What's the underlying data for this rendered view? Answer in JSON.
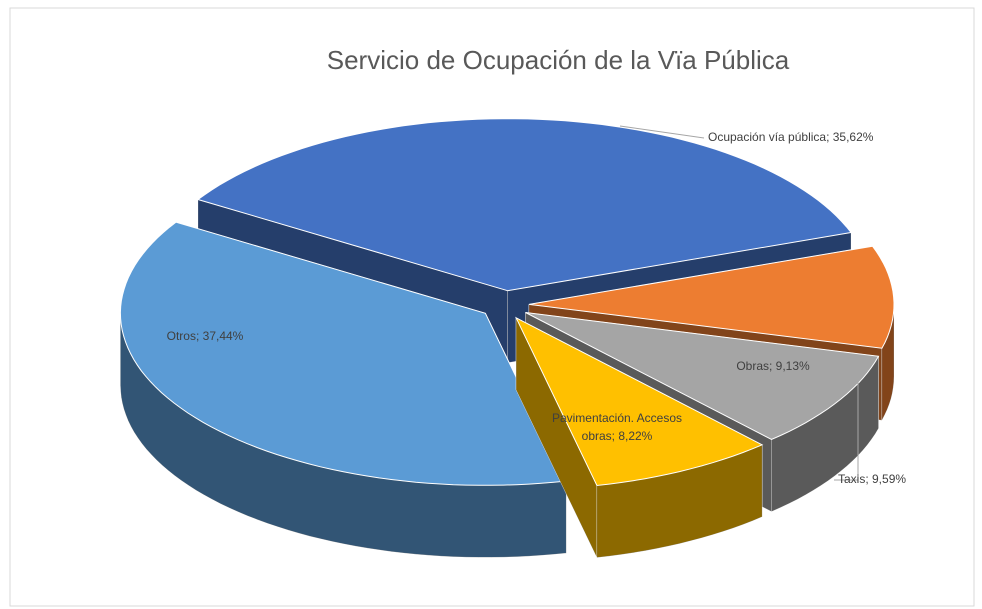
{
  "chart_data": {
    "type": "pie3d",
    "title": "Servicio de Ocupación de la Vïa Pública",
    "values": [
      35.62,
      9.59,
      9.13,
      8.22,
      37.44
    ],
    "value_labels": [
      "Ocupación vía pública; 35,62%",
      "Taxis; 9,59%",
      "Obras; 9,13%",
      "Pavimentación.  Accesos obras; 8,22%",
      "Otros; 37,44%"
    ],
    "colors": [
      "#4472c4",
      "#ed7d31",
      "#a5a5a5",
      "#ffc000",
      "#5b9bd5"
    ]
  }
}
